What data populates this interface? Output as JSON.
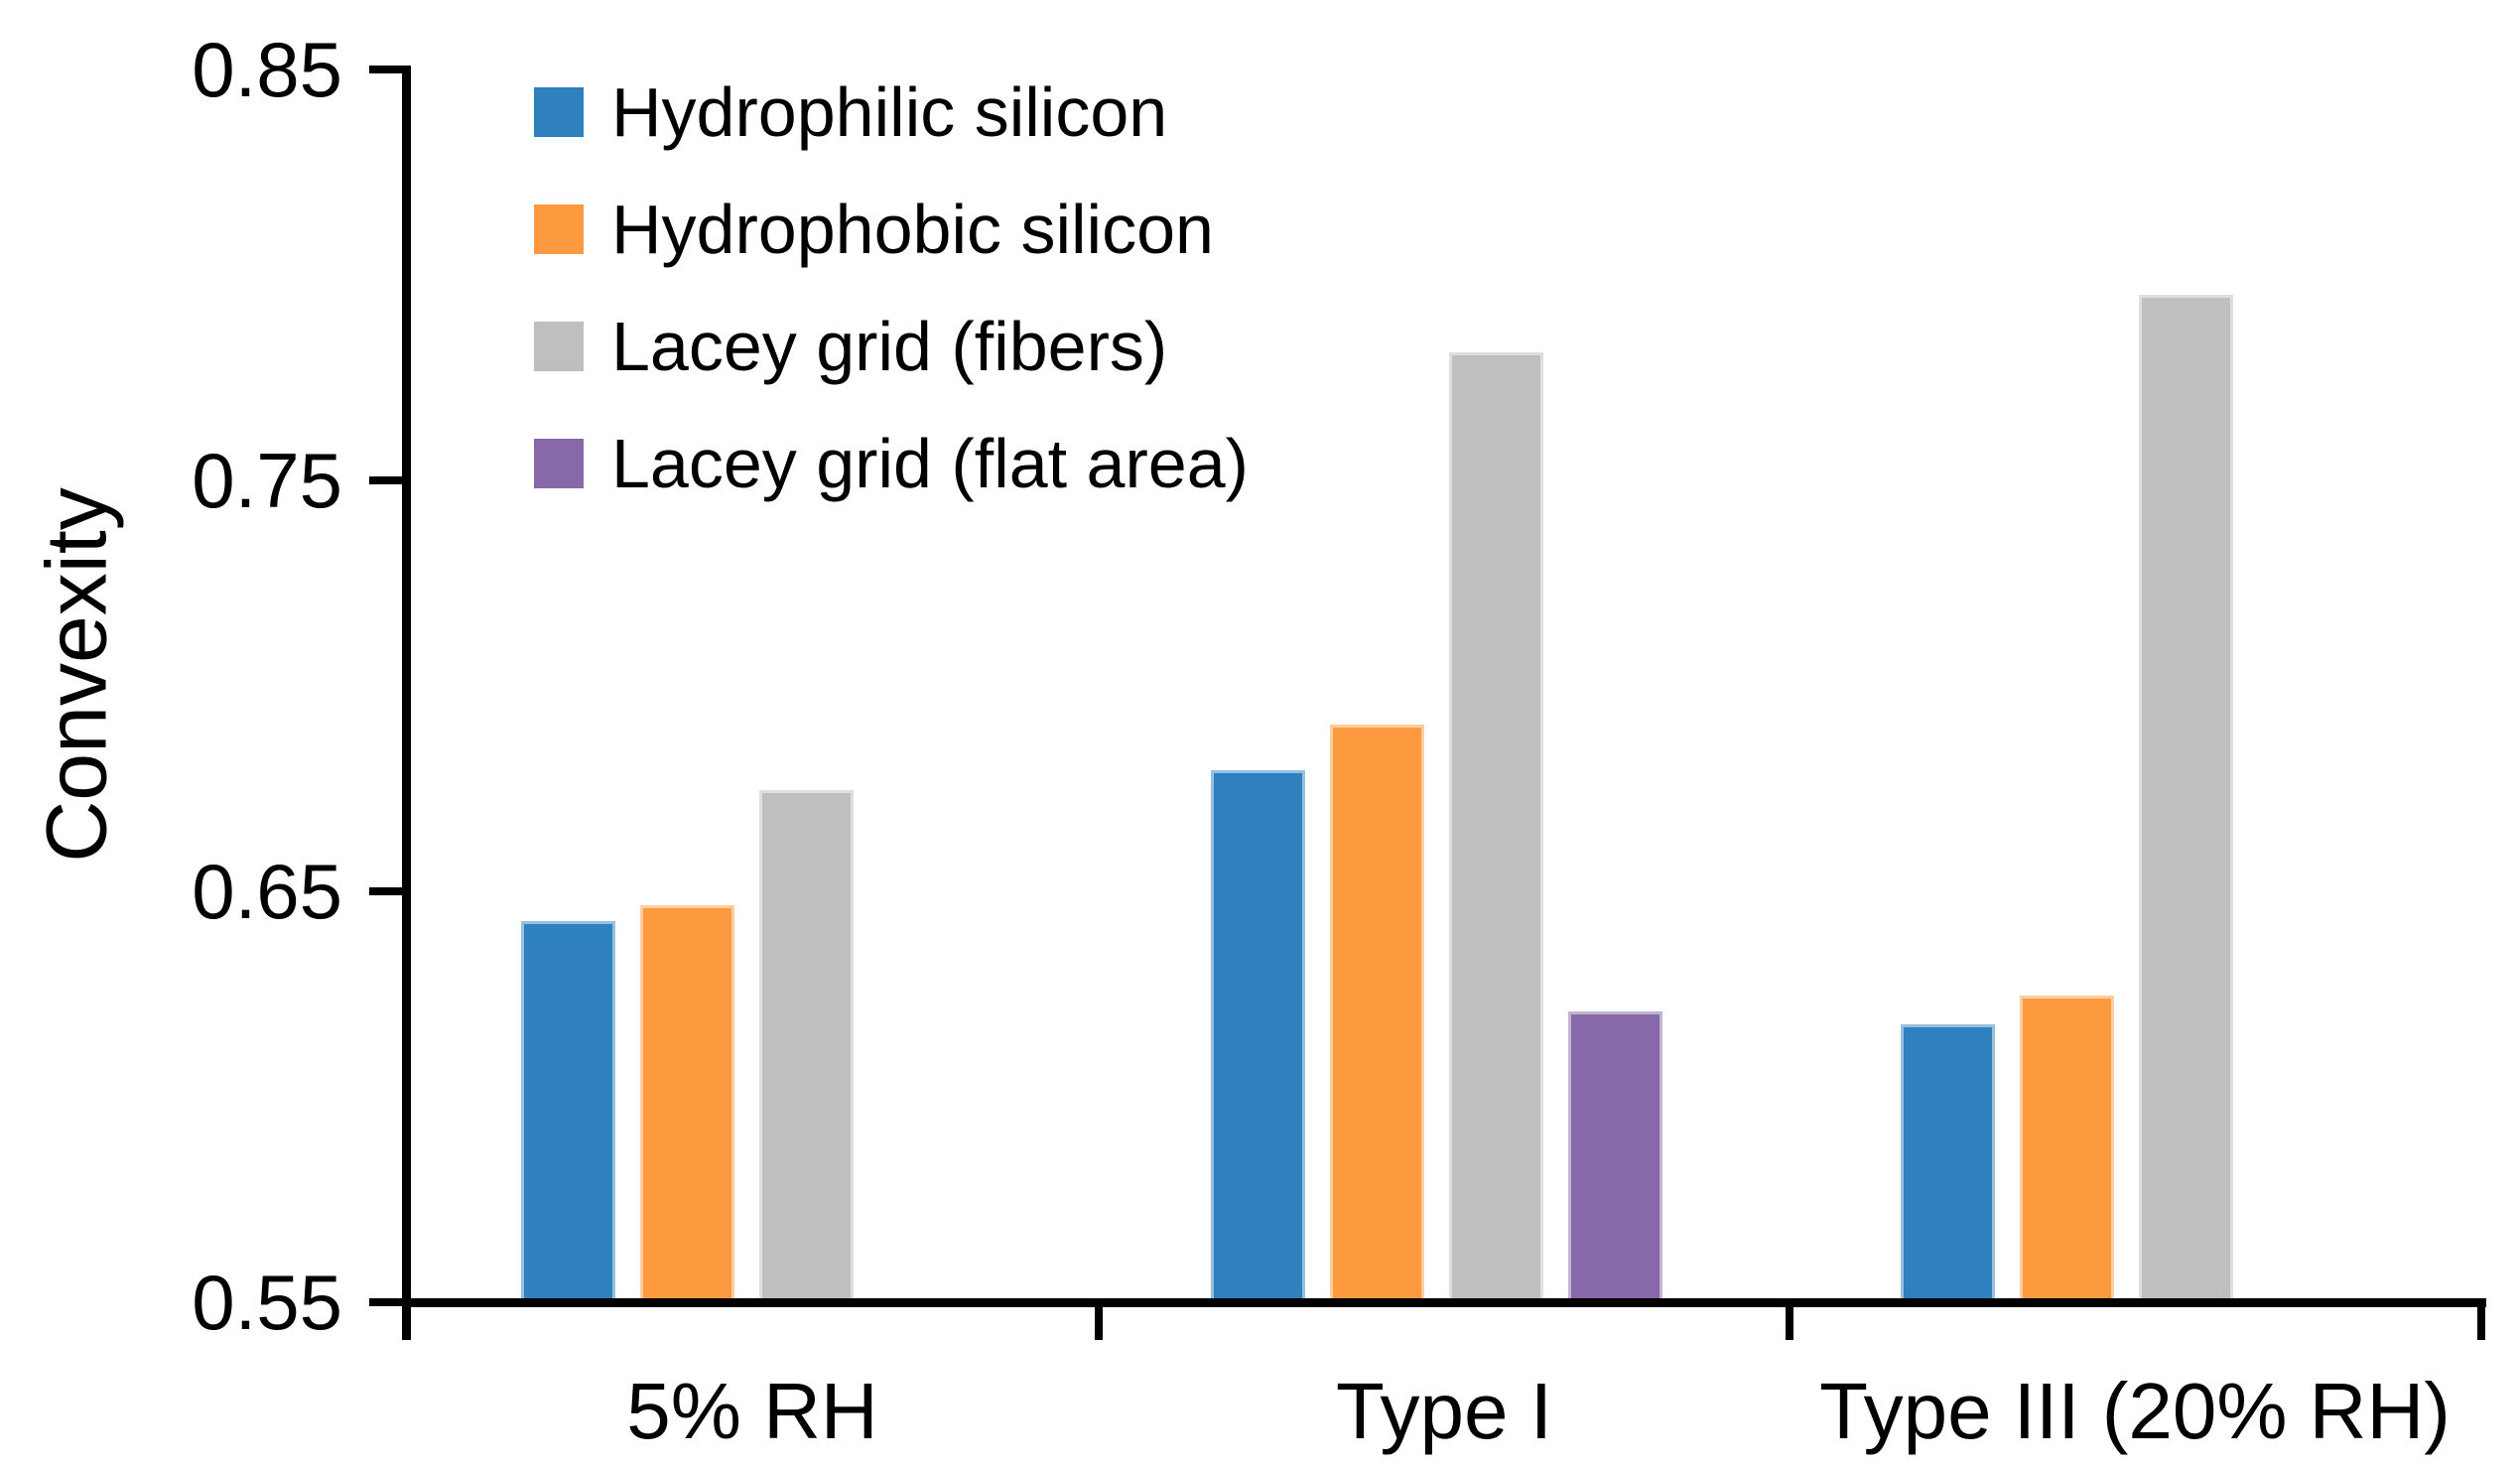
{
  "chart_data": {
    "type": "bar",
    "title": "",
    "xlabel": "",
    "ylabel": "Convexity",
    "ylim": [
      0.55,
      0.85
    ],
    "ytick_interval": 0.1,
    "grid": false,
    "legend_position": "top-left-inside",
    "categories": [
      "5% RH",
      "Type I",
      "Type III (20% RH)"
    ],
    "series": [
      {
        "name": "Hydrophilic silicon",
        "color": "#2E81BE",
        "values": [
          0.642,
          0.679,
          0.617
        ]
      },
      {
        "name": "Hydrophobic silicon",
        "color": "#FD9A3F",
        "values": [
          0.646,
          0.69,
          0.624
        ]
      },
      {
        "name": "Lacey grid (fibers)",
        "color": "#BFBFBF",
        "values": [
          0.674,
          0.781,
          0.795
        ]
      },
      {
        "name": "Lacey grid (flat area)",
        "color": "#8768A8",
        "values": [
          null,
          0.62,
          null
        ]
      }
    ]
  },
  "axes": {
    "y_ticks": [
      "0.85",
      "0.75",
      "0.65",
      "0.55"
    ]
  }
}
